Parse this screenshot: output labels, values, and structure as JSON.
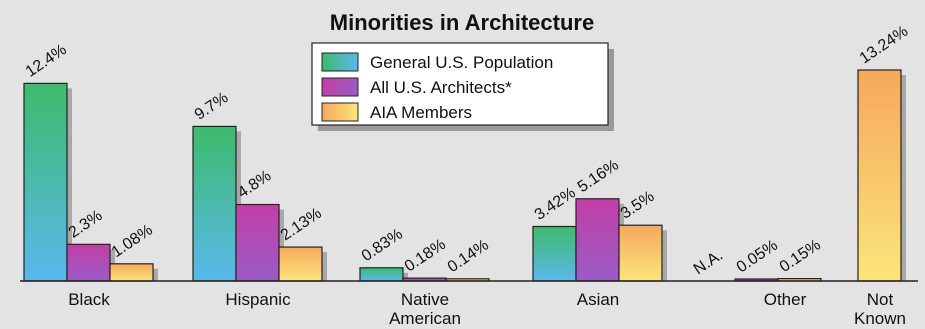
{
  "chart_data": {
    "type": "bar",
    "title": "Minorities in Architecture",
    "categories": [
      "Black",
      "Hispanic",
      "Native American",
      "Asian",
      "Other",
      "Not Known"
    ],
    "series": [
      {
        "name": "General U.S. Population",
        "color": "#4fbf8a",
        "values": [
          12.4,
          9.7,
          0.83,
          3.42,
          null,
          null
        ],
        "labels": [
          "12.4%",
          "9.7%",
          "0.83%",
          "3.42%",
          "N.A.",
          ""
        ]
      },
      {
        "name": "All U.S. Architects*",
        "color": "#b63fa8",
        "values": [
          2.3,
          4.8,
          0.18,
          5.16,
          0.05,
          null
        ],
        "labels": [
          "2.3%",
          "4.8%",
          "0.18%",
          "5.16%",
          "0.05%",
          ""
        ]
      },
      {
        "name": "AIA Members",
        "color": "#f2c85a",
        "values": [
          1.08,
          2.13,
          0.14,
          3.5,
          0.15,
          13.24
        ],
        "labels": [
          "1.08%",
          "2.13%",
          "0.14%",
          "3.5%",
          "0.15%",
          "13.24%"
        ]
      }
    ],
    "xlabel": "",
    "ylabel": "",
    "ylim": [
      0,
      14
    ],
    "grid": false,
    "legend": "top-center"
  }
}
